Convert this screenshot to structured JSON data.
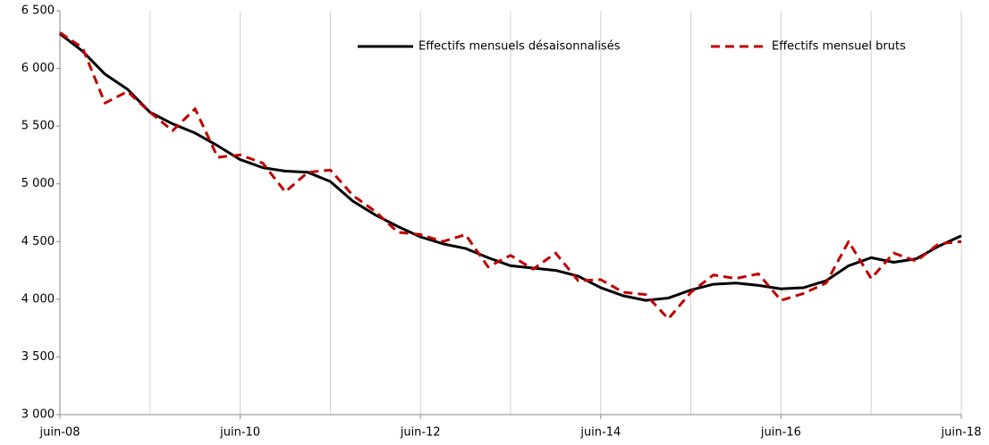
{
  "chart_data": {
    "type": "line",
    "categories": [
      "juin-08",
      null,
      null,
      null,
      null,
      null,
      null,
      null,
      "juin-10",
      null,
      null,
      null,
      null,
      null,
      null,
      null,
      "juin-12",
      null,
      null,
      null,
      null,
      null,
      null,
      null,
      "juin-14",
      null,
      null,
      null,
      null,
      null,
      null,
      null,
      "juin-16",
      null,
      null,
      null,
      null,
      null,
      null,
      null,
      "juin-18"
    ],
    "series": [
      {
        "name": "Effectifs mensuels désaisonnalisés",
        "color": "#000000",
        "dash": false,
        "values": [
          6300,
          6150,
          5950,
          5820,
          5620,
          5520,
          5440,
          5330,
          5210,
          5140,
          5110,
          5100,
          5020,
          4850,
          4730,
          4630,
          4540,
          4480,
          4440,
          4360,
          4290,
          4270,
          4250,
          4200,
          4100,
          4030,
          3990,
          4010,
          4080,
          4130,
          4140,
          4120,
          4090,
          4100,
          4160,
          4290,
          4360,
          4320,
          4350,
          4460,
          4550
        ]
      },
      {
        "name": "Effectifs mensuel bruts",
        "color": "#c00000",
        "dash": true,
        "values": [
          6310,
          6180,
          5700,
          5800,
          5620,
          5460,
          5650,
          5230,
          5250,
          5180,
          4930,
          5100,
          5120,
          4900,
          4760,
          4580,
          4560,
          4500,
          4560,
          4280,
          4380,
          4260,
          4400,
          4160,
          4170,
          4060,
          4040,
          3830,
          4060,
          4210,
          4180,
          4220,
          3990,
          4050,
          4140,
          4500,
          4180,
          4400,
          4330,
          4480,
          4500
        ]
      }
    ],
    "ylim": [
      3000,
      6500
    ],
    "yticks": [
      {
        "value": 3000,
        "label": "3 000"
      },
      {
        "value": 3500,
        "label": "3 500"
      },
      {
        "value": 4000,
        "label": "4 000"
      },
      {
        "value": 4500,
        "label": "4 500"
      },
      {
        "value": 5000,
        "label": "5 000"
      },
      {
        "value": 5500,
        "label": "5 500"
      },
      {
        "value": 6000,
        "label": "6 000"
      },
      {
        "value": 6500,
        "label": "6 500"
      }
    ],
    "grid": true,
    "legend": "top"
  }
}
